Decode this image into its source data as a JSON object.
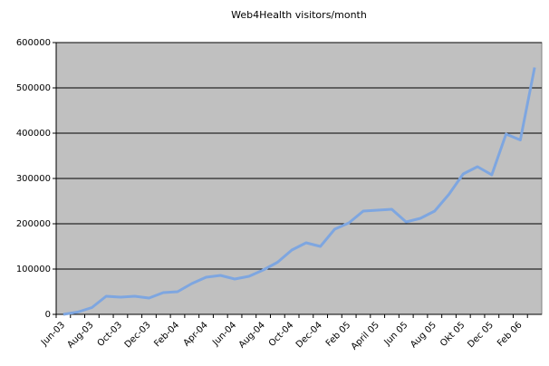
{
  "chart_data": {
    "type": "line",
    "title": "Web4Health visitors/month",
    "categories": [
      "Jun-03",
      null,
      "Aug-03",
      null,
      "Oct-03",
      null,
      "Dec-03",
      null,
      "Feb-04",
      null,
      "Apr-04",
      null,
      "Jun-04",
      null,
      "Aug-04",
      null,
      "Oct-04",
      null,
      "Dec-04",
      null,
      "Feb 05",
      null,
      "April 05",
      null,
      "Jun 05",
      null,
      "Aug 05",
      null,
      "Okt 05",
      null,
      "Dec 05",
      null,
      "Feb 06",
      null
    ],
    "series": [
      {
        "name": "visitors",
        "color": "#7ea6e0",
        "values": [
          0,
          5000,
          15000,
          40000,
          38000,
          40000,
          36000,
          48000,
          50000,
          68000,
          82000,
          86000,
          78000,
          84000,
          98000,
          115000,
          142000,
          158000,
          150000,
          188000,
          202000,
          228000,
          230000,
          232000,
          204000,
          212000,
          228000,
          265000,
          310000,
          326000,
          308000,
          398000,
          385000,
          545000
        ]
      }
    ],
    "ylim": [
      0,
      600000
    ],
    "yticks": [
      0,
      100000,
      200000,
      300000,
      400000,
      500000,
      600000
    ],
    "grid": true
  }
}
